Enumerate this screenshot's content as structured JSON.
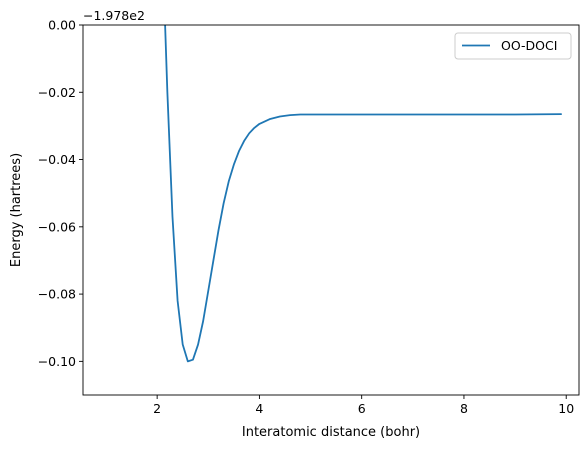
{
  "chart_data": {
    "type": "line",
    "xlabel": "Interatomic distance (bohr)",
    "ylabel": "Energy (hartrees)",
    "y_offset_label": "−1.978e2",
    "xlim": [
      0.55,
      10.25
    ],
    "ylim": [
      -0.11,
      0.0
    ],
    "x_ticks": [
      2,
      4,
      6,
      8,
      10
    ],
    "x_tick_labels": [
      "2",
      "4",
      "6",
      "8",
      "10"
    ],
    "y_ticks": [
      0.0,
      -0.02,
      -0.04,
      -0.06,
      -0.08,
      -0.1
    ],
    "y_tick_labels": [
      "0.00",
      "−0.02",
      "−0.04",
      "−0.06",
      "−0.08",
      "−0.10"
    ],
    "grid": false,
    "legend_position": "top-right",
    "series": [
      {
        "name": "OO-DOCI",
        "color": "#1f77b4",
        "x": [
          2.1,
          2.2,
          2.3,
          2.4,
          2.5,
          2.6,
          2.7,
          2.8,
          2.9,
          3.0,
          3.1,
          3.2,
          3.3,
          3.4,
          3.5,
          3.6,
          3.7,
          3.8,
          3.9,
          4.0,
          4.2,
          4.4,
          4.6,
          4.8,
          5.0,
          5.5,
          6.0,
          7.0,
          8.0,
          9.0,
          9.9
        ],
        "y": [
          0.025,
          -0.02,
          -0.057,
          -0.082,
          -0.095,
          -0.1,
          -0.0995,
          -0.095,
          -0.088,
          -0.079,
          -0.07,
          -0.061,
          -0.053,
          -0.0465,
          -0.0415,
          -0.0375,
          -0.0345,
          -0.0322,
          -0.0306,
          -0.0294,
          -0.028,
          -0.0272,
          -0.0268,
          -0.0266,
          -0.0266,
          -0.0266,
          -0.0266,
          -0.0266,
          -0.0266,
          -0.0266,
          -0.0265
        ]
      }
    ]
  }
}
